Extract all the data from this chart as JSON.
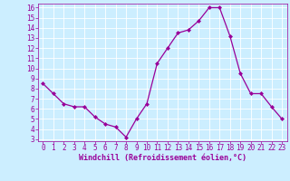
{
  "x": [
    0,
    1,
    2,
    3,
    4,
    5,
    6,
    7,
    8,
    9,
    10,
    11,
    12,
    13,
    14,
    15,
    16,
    17,
    18,
    19,
    20,
    21,
    22,
    23
  ],
  "y": [
    8.5,
    7.5,
    6.5,
    6.2,
    6.2,
    5.2,
    4.5,
    4.2,
    3.2,
    5.0,
    6.5,
    10.5,
    12.0,
    13.5,
    13.8,
    14.7,
    16.0,
    16.0,
    13.2,
    9.5,
    7.5,
    7.5,
    6.2,
    5.0
  ],
  "line_color": "#990099",
  "marker": "D",
  "markersize": 2.0,
  "linewidth": 0.9,
  "bg_color": "#cceeff",
  "grid_color": "#ffffff",
  "xlabel": "Windchill (Refroidissement éolien,°C)",
  "xlabel_color": "#990099",
  "tick_color": "#990099",
  "ylim_min": 2.8,
  "ylim_max": 16.4,
  "xlim_min": -0.5,
  "xlim_max": 23.5,
  "yticks": [
    3,
    4,
    5,
    6,
    7,
    8,
    9,
    10,
    11,
    12,
    13,
    14,
    15,
    16
  ],
  "xticks": [
    0,
    1,
    2,
    3,
    4,
    5,
    6,
    7,
    8,
    9,
    10,
    11,
    12,
    13,
    14,
    15,
    16,
    17,
    18,
    19,
    20,
    21,
    22,
    23
  ],
  "label_fontsize": 6.0,
  "tick_fontsize": 5.5
}
